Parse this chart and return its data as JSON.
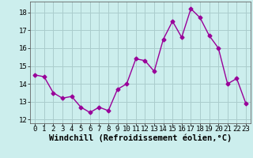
{
  "x": [
    0,
    1,
    2,
    3,
    4,
    5,
    6,
    7,
    8,
    9,
    10,
    11,
    12,
    13,
    14,
    15,
    16,
    17,
    18,
    19,
    20,
    21,
    22,
    23
  ],
  "y": [
    14.5,
    14.4,
    13.5,
    13.2,
    13.3,
    12.7,
    12.4,
    12.7,
    12.5,
    13.7,
    14.0,
    15.4,
    15.3,
    14.7,
    16.5,
    17.5,
    16.6,
    18.2,
    17.7,
    16.7,
    16.0,
    14.0,
    14.3,
    12.9
  ],
  "line_color": "#990099",
  "marker": "D",
  "marker_size": 2.5,
  "linewidth": 1.0,
  "bg_color": "#cceeed",
  "grid_color": "#aacccc",
  "xlabel": "Windchill (Refroidissement éolien,°C)",
  "xlabel_fontsize": 7.5,
  "tick_fontsize": 6.5,
  "ylim": [
    11.8,
    18.6
  ],
  "yticks": [
    12,
    13,
    14,
    15,
    16,
    17,
    18
  ],
  "xlim": [
    -0.5,
    23.5
  ],
  "xticks": [
    0,
    1,
    2,
    3,
    4,
    5,
    6,
    7,
    8,
    9,
    10,
    11,
    12,
    13,
    14,
    15,
    16,
    17,
    18,
    19,
    20,
    21,
    22,
    23
  ]
}
